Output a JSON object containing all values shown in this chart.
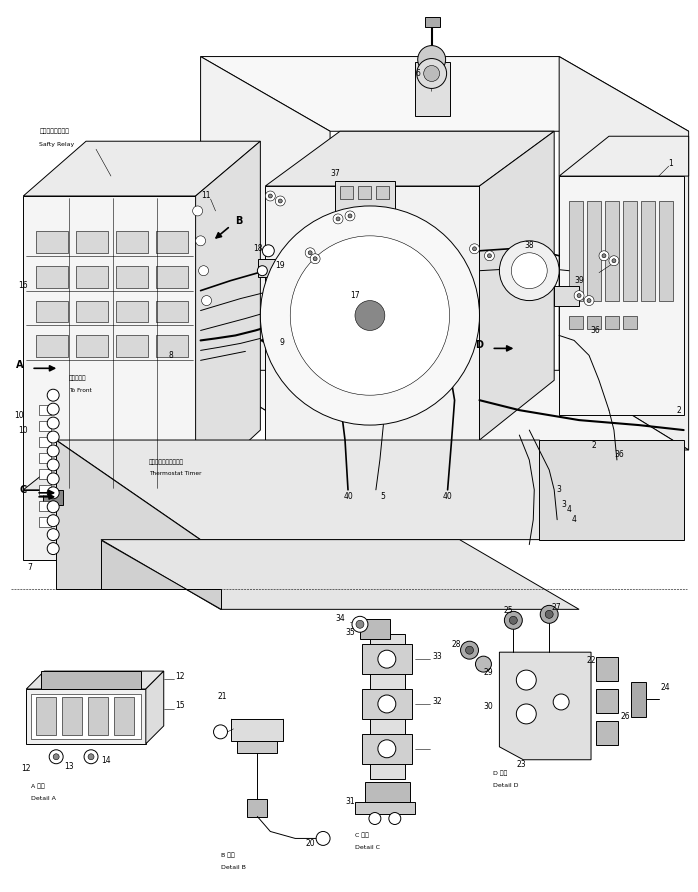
{
  "bg_color": "#ffffff",
  "lc": "#000000",
  "fig_w": 6.98,
  "fig_h": 8.92,
  "dpi": 100,
  "lw_thick": 1.2,
  "lw_mid": 0.7,
  "lw_thin": 0.4,
  "fs_label": 5.0,
  "fs_num": 5.5,
  "fs_letter": 7.0,
  "labels": {
    "safety_relay_jp": "セーフティリレー",
    "safety_relay_en": "Safty Relay",
    "thermostat_jp": "サーモスタットタイマ",
    "thermostat_en": "Thermostat Timer",
    "to_front_jp": "フロントへ",
    "to_front_en": "To Front",
    "detail_a_jp": "A 詳細",
    "detail_a_en": "Detail A",
    "detail_b_jp": "B 詳細",
    "detail_b_en": "Detail B",
    "detail_c_jp": "C 詳細",
    "detail_c_en": "Detail C",
    "detail_d_jp": "D 詳細",
    "detail_d_en": "Detail D"
  }
}
